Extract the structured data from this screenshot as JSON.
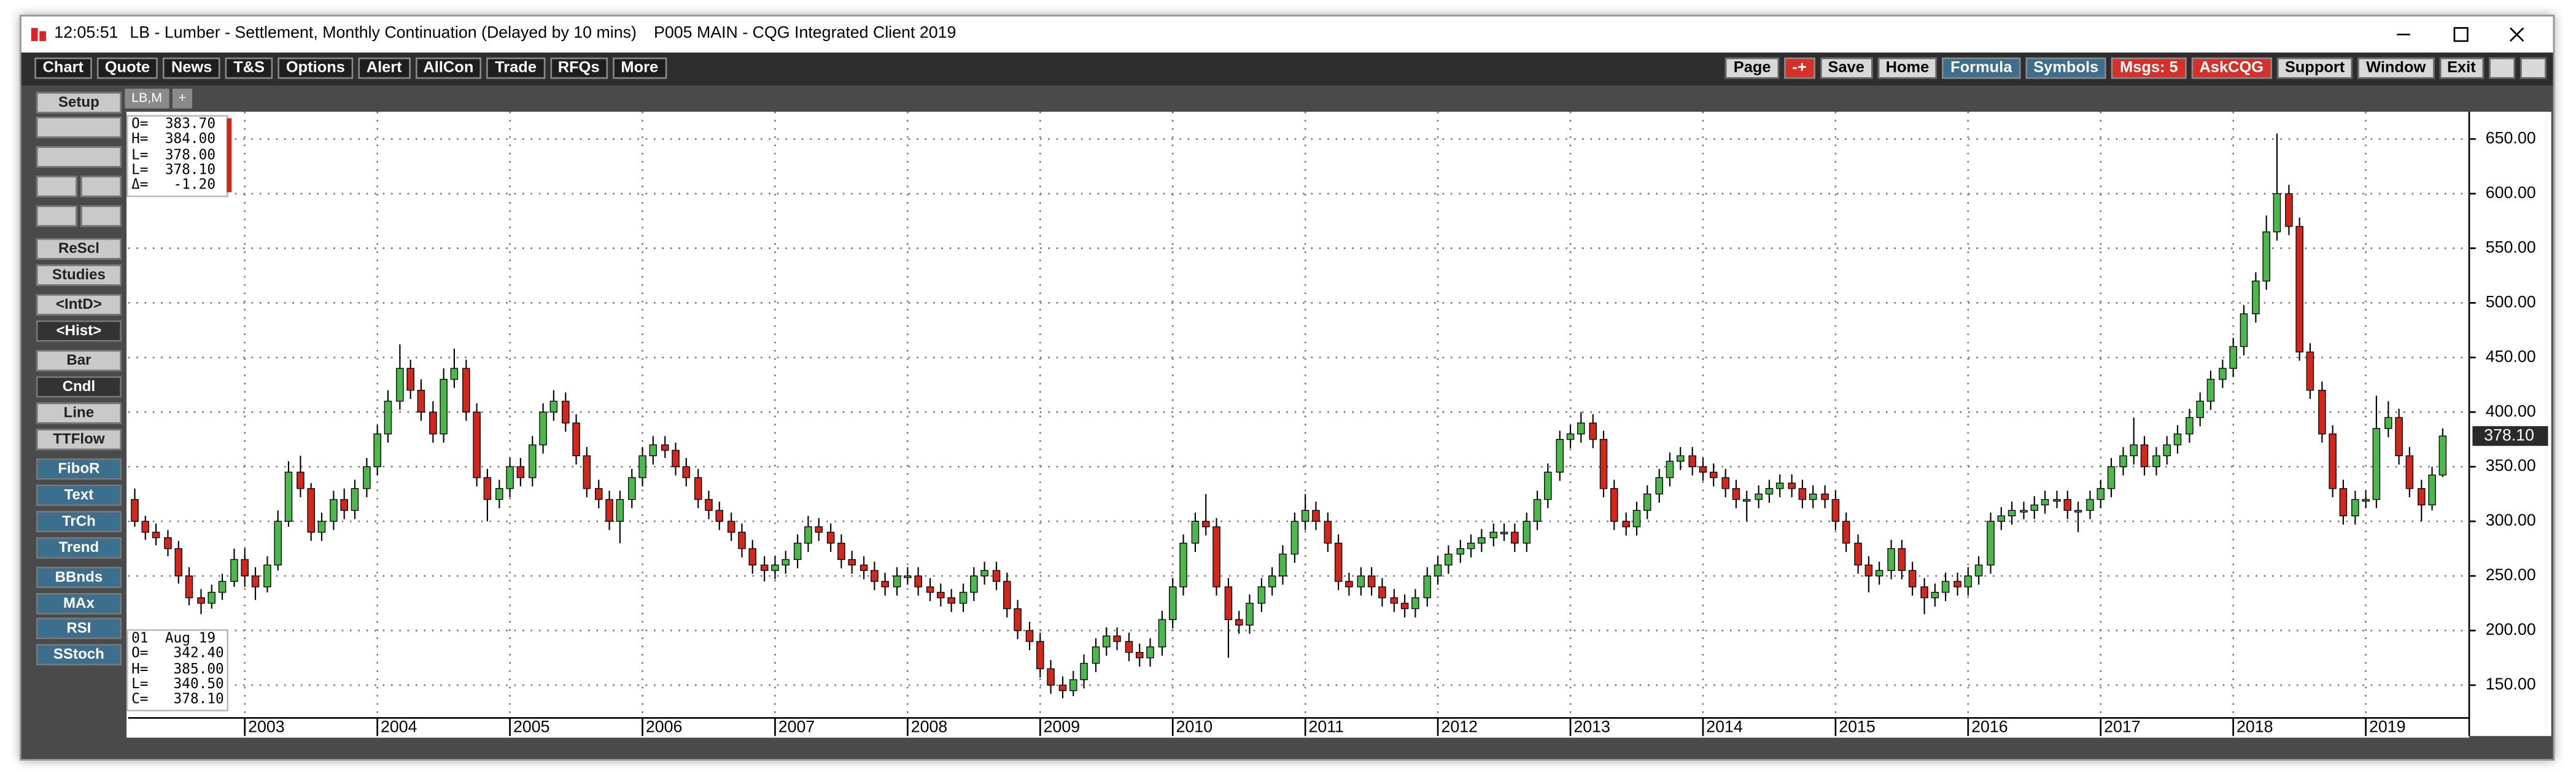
{
  "title_bar": {
    "time": "12:05:51",
    "text": "LB - Lumber - Settlement, Monthly Continuation (Delayed by 10 mins)",
    "app": "P005 MAIN - CQG Integrated Client 2019"
  },
  "toolbar_left": [
    "Chart",
    "Quote",
    "News",
    "T&S",
    "Options",
    "Alert",
    "AllCon",
    "Trade",
    "RFQs",
    "More"
  ],
  "toolbar_right": [
    "Page",
    "-+",
    "Save",
    "Home",
    "Formula",
    "Symbols",
    "Msgs: 5",
    "AskCQG",
    "Support",
    "Window",
    "Exit"
  ],
  "sidebar": [
    "Setup",
    "ReScl",
    "Studies",
    "<IntD>",
    "<Hist>",
    "Bar",
    "Cndl",
    "Line",
    "TTFlow",
    "FiboR",
    "Text",
    "TrCh",
    "Trend",
    "BBnds",
    "MAx",
    "RSI",
    "SStoch"
  ],
  "tabs": [
    "LB,M",
    "+"
  ],
  "cursor_info": [
    "O=  383.70",
    "H=  384.00",
    "L=  378.00",
    "L=  378.10",
    "Δ=   -1.20"
  ],
  "bar_info": [
    "01  Aug 19",
    "O=   342.40",
    "H=   385.00",
    "L=   340.50",
    "C=   378.10"
  ],
  "chart_data": {
    "type": "candlestick",
    "up_color": "#4cb84c",
    "down_color": "#d0281c",
    "grid": true,
    "xlim": [
      2002.12,
      2019.78
    ],
    "ylim": [
      120,
      675
    ],
    "xticks": [
      2003,
      2004,
      2005,
      2006,
      2007,
      2008,
      2009,
      2010,
      2011,
      2012,
      2013,
      2014,
      2015,
      2016,
      2017,
      2018,
      2019
    ],
    "yticks": [
      {
        "value": 150,
        "label": "150.00"
      },
      {
        "value": 200,
        "label": "200.00"
      },
      {
        "value": 250,
        "label": "250.00"
      },
      {
        "value": 300,
        "label": "300.00"
      },
      {
        "value": 350,
        "label": "350.00"
      },
      {
        "value": 400,
        "label": "400.00"
      },
      {
        "value": 450,
        "label": "450.00"
      },
      {
        "value": 500,
        "label": "500.00"
      },
      {
        "value": 550,
        "label": "550.00"
      },
      {
        "value": 600,
        "label": "600.00"
      },
      {
        "value": 650,
        "label": "650.00"
      }
    ],
    "last_label": "378.10",
    "x": [
      2002.17,
      2002.25,
      2002.33,
      2002.42,
      2002.5,
      2002.58,
      2002.67,
      2002.75,
      2002.83,
      2002.92,
      2003,
      2003.08,
      2003.17,
      2003.25,
      2003.33,
      2003.42,
      2003.5,
      2003.58,
      2003.67,
      2003.75,
      2003.83,
      2003.92,
      2004,
      2004.08,
      2004.17,
      2004.25,
      2004.33,
      2004.42,
      2004.5,
      2004.58,
      2004.67,
      2004.75,
      2004.83,
      2004.92,
      2005,
      2005.08,
      2005.17,
      2005.25,
      2005.33,
      2005.42,
      2005.5,
      2005.58,
      2005.67,
      2005.75,
      2005.83,
      2005.92,
      2006,
      2006.08,
      2006.17,
      2006.25,
      2006.33,
      2006.42,
      2006.5,
      2006.58,
      2006.67,
      2006.75,
      2006.83,
      2006.92,
      2007,
      2007.08,
      2007.17,
      2007.25,
      2007.33,
      2007.42,
      2007.5,
      2007.58,
      2007.67,
      2007.75,
      2007.83,
      2007.92,
      2008,
      2008.08,
      2008.17,
      2008.25,
      2008.33,
      2008.42,
      2008.5,
      2008.58,
      2008.67,
      2008.75,
      2008.83,
      2008.92,
      2009,
      2009.08,
      2009.17,
      2009.25,
      2009.33,
      2009.42,
      2009.5,
      2009.58,
      2009.67,
      2009.75,
      2009.83,
      2009.92,
      2010,
      2010.08,
      2010.17,
      2010.25,
      2010.33,
      2010.42,
      2010.5,
      2010.58,
      2010.67,
      2010.75,
      2010.83,
      2010.92,
      2011,
      2011.08,
      2011.17,
      2011.25,
      2011.33,
      2011.42,
      2011.5,
      2011.58,
      2011.67,
      2011.75,
      2011.83,
      2011.92,
      2012,
      2012.08,
      2012.17,
      2012.25,
      2012.33,
      2012.42,
      2012.5,
      2012.58,
      2012.67,
      2012.75,
      2012.83,
      2012.92,
      2013,
      2013.08,
      2013.17,
      2013.25,
      2013.33,
      2013.42,
      2013.5,
      2013.58,
      2013.67,
      2013.75,
      2013.83,
      2013.92,
      2014,
      2014.08,
      2014.17,
      2014.25,
      2014.33,
      2014.42,
      2014.5,
      2014.58,
      2014.67,
      2014.75,
      2014.83,
      2014.92,
      2015,
      2015.08,
      2015.17,
      2015.25,
      2015.33,
      2015.42,
      2015.5,
      2015.58,
      2015.67,
      2015.75,
      2015.83,
      2015.92,
      2016,
      2016.08,
      2016.17,
      2016.25,
      2016.33,
      2016.42,
      2016.5,
      2016.58,
      2016.67,
      2016.75,
      2016.83,
      2016.92,
      2017,
      2017.08,
      2017.17,
      2017.25,
      2017.33,
      2017.42,
      2017.5,
      2017.58,
      2017.67,
      2017.75,
      2017.83,
      2017.92,
      2018,
      2018.08,
      2018.17,
      2018.25,
      2018.33,
      2018.42,
      2018.5,
      2018.58,
      2018.67,
      2018.75,
      2018.83,
      2018.92,
      2019,
      2019.08,
      2019.17,
      2019.25,
      2019.33,
      2019.42,
      2019.5,
      2019.58
    ],
    "open": [
      320,
      300,
      290,
      285,
      275,
      250,
      230,
      225,
      235,
      245,
      265,
      250,
      240,
      260,
      300,
      345,
      330,
      290,
      300,
      320,
      310,
      330,
      350,
      380,
      410,
      440,
      420,
      400,
      380,
      430,
      440,
      400,
      340,
      320,
      330,
      350,
      340,
      370,
      400,
      410,
      390,
      360,
      330,
      320,
      300,
      320,
      340,
      360,
      370,
      365,
      350,
      340,
      320,
      310,
      300,
      290,
      275,
      260,
      255,
      260,
      265,
      280,
      295,
      290,
      280,
      265,
      260,
      255,
      245,
      240,
      250,
      250,
      240,
      235,
      230,
      225,
      235,
      250,
      255,
      245,
      220,
      200,
      190,
      165,
      150,
      145,
      155,
      170,
      185,
      195,
      190,
      180,
      175,
      185,
      210,
      240,
      280,
      300,
      295,
      240,
      210,
      205,
      225,
      240,
      250,
      270,
      300,
      310,
      300,
      280,
      245,
      240,
      250,
      240,
      230,
      225,
      220,
      230,
      250,
      260,
      270,
      275,
      280,
      285,
      290,
      290,
      280,
      300,
      320,
      345,
      375,
      380,
      390,
      375,
      330,
      300,
      295,
      310,
      325,
      340,
      355,
      360,
      350,
      345,
      340,
      330,
      320,
      320,
      325,
      330,
      335,
      330,
      320,
      325,
      320,
      300,
      280,
      260,
      250,
      255,
      275,
      255,
      240,
      230,
      235,
      245,
      240,
      250,
      260,
      300,
      305,
      310,
      310,
      315,
      320,
      320,
      310,
      310,
      320,
      330,
      350,
      360,
      370,
      350,
      360,
      370,
      380,
      395,
      410,
      430,
      440,
      460,
      490,
      520,
      565,
      600,
      570,
      455,
      420,
      380,
      330,
      305,
      320,
      320,
      385,
      395,
      360,
      330,
      315,
      342.4
    ],
    "high": [
      330,
      305,
      298,
      292,
      282,
      258,
      238,
      242,
      252,
      275,
      275,
      258,
      268,
      310,
      355,
      360,
      335,
      308,
      328,
      330,
      338,
      358,
      388,
      420,
      462,
      448,
      430,
      410,
      440,
      458,
      448,
      408,
      348,
      338,
      358,
      358,
      378,
      408,
      420,
      418,
      398,
      368,
      338,
      328,
      328,
      348,
      368,
      378,
      378,
      372,
      358,
      348,
      328,
      318,
      308,
      298,
      283,
      268,
      268,
      273,
      288,
      305,
      303,
      298,
      288,
      273,
      268,
      263,
      253,
      258,
      258,
      258,
      248,
      243,
      238,
      243,
      258,
      263,
      263,
      253,
      228,
      208,
      198,
      173,
      158,
      163,
      178,
      193,
      203,
      203,
      198,
      188,
      193,
      218,
      248,
      288,
      308,
      325,
      303,
      248,
      218,
      233,
      248,
      258,
      278,
      308,
      325,
      318,
      308,
      288,
      253,
      258,
      258,
      248,
      238,
      233,
      238,
      258,
      268,
      278,
      283,
      288,
      293,
      298,
      298,
      298,
      308,
      328,
      353,
      383,
      388,
      400,
      398,
      383,
      338,
      308,
      318,
      333,
      348,
      363,
      368,
      368,
      358,
      353,
      348,
      338,
      328,
      333,
      338,
      343,
      343,
      338,
      333,
      333,
      328,
      308,
      288,
      268,
      263,
      283,
      283,
      263,
      248,
      243,
      253,
      253,
      258,
      268,
      308,
      313,
      318,
      318,
      323,
      328,
      328,
      328,
      318,
      328,
      338,
      358,
      368,
      395,
      378,
      368,
      378,
      388,
      403,
      418,
      438,
      448,
      468,
      498,
      528,
      580,
      655,
      608,
      578,
      463,
      428,
      388,
      338,
      328,
      328,
      415,
      410,
      403,
      368,
      338,
      350,
      385
    ],
    "low": [
      295,
      283,
      278,
      268,
      243,
      223,
      215,
      220,
      228,
      240,
      240,
      228,
      235,
      255,
      295,
      322,
      282,
      282,
      292,
      302,
      302,
      322,
      342,
      372,
      402,
      412,
      392,
      372,
      372,
      422,
      392,
      332,
      300,
      312,
      322,
      332,
      332,
      362,
      392,
      382,
      352,
      322,
      312,
      292,
      280,
      312,
      332,
      352,
      358,
      342,
      332,
      312,
      302,
      292,
      282,
      267,
      252,
      245,
      247,
      252,
      257,
      272,
      282,
      272,
      257,
      252,
      247,
      237,
      232,
      232,
      242,
      232,
      227,
      222,
      217,
      217,
      227,
      242,
      237,
      212,
      192,
      182,
      157,
      142,
      138,
      140,
      147,
      162,
      177,
      182,
      172,
      167,
      167,
      177,
      202,
      232,
      272,
      287,
      232,
      175,
      197,
      197,
      217,
      232,
      242,
      262,
      292,
      292,
      272,
      237,
      232,
      232,
      232,
      222,
      217,
      212,
      212,
      222,
      242,
      252,
      262,
      267,
      272,
      277,
      282,
      272,
      272,
      292,
      312,
      337,
      367,
      372,
      367,
      322,
      292,
      287,
      287,
      302,
      317,
      332,
      347,
      342,
      337,
      332,
      322,
      312,
      300,
      312,
      317,
      322,
      322,
      312,
      312,
      312,
      292,
      272,
      252,
      235,
      242,
      247,
      247,
      232,
      215,
      222,
      227,
      232,
      232,
      242,
      252,
      292,
      297,
      302,
      302,
      307,
      312,
      302,
      290,
      302,
      312,
      322,
      342,
      352,
      342,
      342,
      352,
      362,
      372,
      387,
      402,
      422,
      432,
      452,
      482,
      512,
      557,
      562,
      447,
      412,
      372,
      322,
      297,
      297,
      312,
      312,
      377,
      352,
      322,
      300,
      310,
      340.5
    ],
    "close": [
      300,
      290,
      285,
      275,
      250,
      230,
      225,
      235,
      245,
      265,
      250,
      240,
      260,
      300,
      345,
      330,
      290,
      300,
      320,
      310,
      330,
      350,
      380,
      410,
      440,
      420,
      400,
      380,
      430,
      440,
      400,
      340,
      320,
      330,
      350,
      340,
      370,
      400,
      410,
      390,
      360,
      330,
      320,
      300,
      320,
      340,
      360,
      370,
      365,
      350,
      340,
      320,
      310,
      300,
      290,
      275,
      260,
      255,
      260,
      265,
      280,
      295,
      290,
      280,
      265,
      260,
      255,
      245,
      240,
      250,
      250,
      240,
      235,
      230,
      225,
      235,
      250,
      255,
      245,
      220,
      200,
      190,
      165,
      150,
      145,
      155,
      170,
      185,
      195,
      190,
      180,
      175,
      185,
      210,
      240,
      280,
      300,
      295,
      240,
      210,
      205,
      225,
      240,
      250,
      270,
      300,
      310,
      300,
      280,
      245,
      240,
      250,
      240,
      230,
      225,
      220,
      230,
      250,
      260,
      270,
      275,
      280,
      285,
      290,
      290,
      280,
      300,
      320,
      345,
      375,
      380,
      390,
      375,
      330,
      300,
      295,
      310,
      325,
      340,
      355,
      360,
      350,
      345,
      340,
      330,
      320,
      320,
      325,
      330,
      335,
      330,
      320,
      325,
      320,
      300,
      280,
      260,
      250,
      255,
      275,
      255,
      240,
      230,
      235,
      245,
      240,
      250,
      260,
      300,
      305,
      310,
      310,
      315,
      320,
      320,
      310,
      310,
      320,
      330,
      350,
      360,
      370,
      350,
      360,
      370,
      380,
      395,
      410,
      430,
      440,
      460,
      490,
      520,
      565,
      600,
      570,
      455,
      420,
      380,
      330,
      305,
      320,
      320,
      385,
      395,
      360,
      330,
      315,
      342.4,
      378.1
    ]
  }
}
